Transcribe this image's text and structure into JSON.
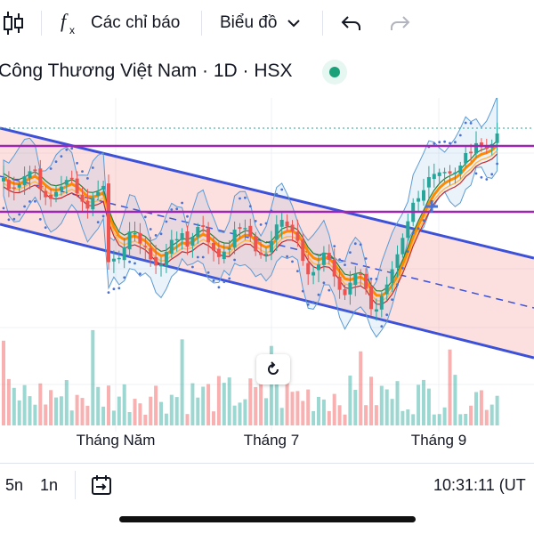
{
  "toolbar": {
    "candles_icon": "candlestick-icon",
    "indicators_label": "Các chỉ báo",
    "chart_type_label": "Biểu đồ",
    "undo_icon": "undo-icon",
    "redo_icon": "redo-icon"
  },
  "header": {
    "title": "Công Thương Việt Nam · 1D · HSX",
    "status_color": "#1aa179"
  },
  "chart": {
    "x_labels": [
      "Tháng Năm",
      "Tháng 7",
      "Tháng 9"
    ],
    "colors": {
      "up": "#26a69a",
      "down": "#ef5350",
      "channel": "#3d51d8",
      "level": "#9c27b0",
      "ema": "#ff8a00",
      "bollinger": "#5b9bd5"
    }
  },
  "bottom": {
    "range_5n": "5n",
    "range_1n": "1n",
    "time": "10:31:11 (UT"
  }
}
